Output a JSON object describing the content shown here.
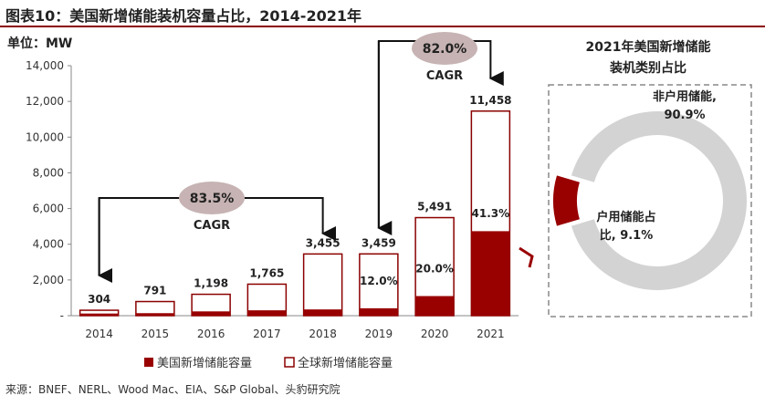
{
  "figure_title": "图表10：美国新增储能装机容量占比，2014-2021年",
  "source_note": "来源：BNEF、NERL、Wood Mac、EIA、S&P Global、头豹研究院",
  "colors": {
    "us": "#990000",
    "global_outline": "#8b0000",
    "callout_bubble": "#c7b3b3",
    "pie_other": "#d3d3d3",
    "panel_border": "#888888"
  },
  "chart_data": [
    {
      "type": "bar",
      "unit_label": "单位：MW",
      "categories": [
        "2014",
        "2015",
        "2016",
        "2017",
        "2018",
        "2019",
        "2020",
        "2021"
      ],
      "ylim": [
        0,
        14000
      ],
      "yticks": [
        0,
        2000,
        4000,
        6000,
        8000,
        10000,
        12000,
        14000
      ],
      "ytick_labels": [
        "-",
        "2,000",
        "4,000",
        "6,000",
        "8,000",
        "10,000",
        "12,000",
        "14,000"
      ],
      "series": [
        {
          "name": "美国新增储能容量",
          "values": [
            120,
            140,
            240,
            300,
            350,
            415,
            1098,
            4732
          ]
        },
        {
          "name": "全球新增储能容量",
          "values": [
            304,
            791,
            1198,
            1765,
            3455,
            3459,
            5491,
            11458
          ]
        }
      ],
      "total_labels": [
        "304",
        "791",
        "1,198",
        "1,765",
        "3,455",
        "3,459",
        "5,491",
        "11,458"
      ],
      "share_labels": [
        {
          "category": "2019",
          "text": "12.0%"
        },
        {
          "category": "2020",
          "text": "20.0%"
        },
        {
          "category": "2021",
          "text": "41.3%"
        }
      ],
      "callouts": [
        {
          "value": "83.5%",
          "label": "CAGR",
          "from": "2014",
          "to": "2018"
        },
        {
          "value": "82.0%",
          "label": "CAGR",
          "from": "2019",
          "to": "2021"
        }
      ],
      "legend": [
        "美国新增储能容量",
        "全球新增储能容量"
      ],
      "grid": false,
      "legend_position": "bottom"
    },
    {
      "type": "pie",
      "title_lines": [
        "2021年美国新增储能",
        "装机类别占比"
      ],
      "slices": [
        {
          "label_lines": [
            "非户用储能,",
            "90.9%"
          ],
          "value": 90.9
        },
        {
          "label_lines": [
            "户用储能占",
            "比, 9.1%"
          ],
          "value": 9.1
        }
      ]
    }
  ]
}
